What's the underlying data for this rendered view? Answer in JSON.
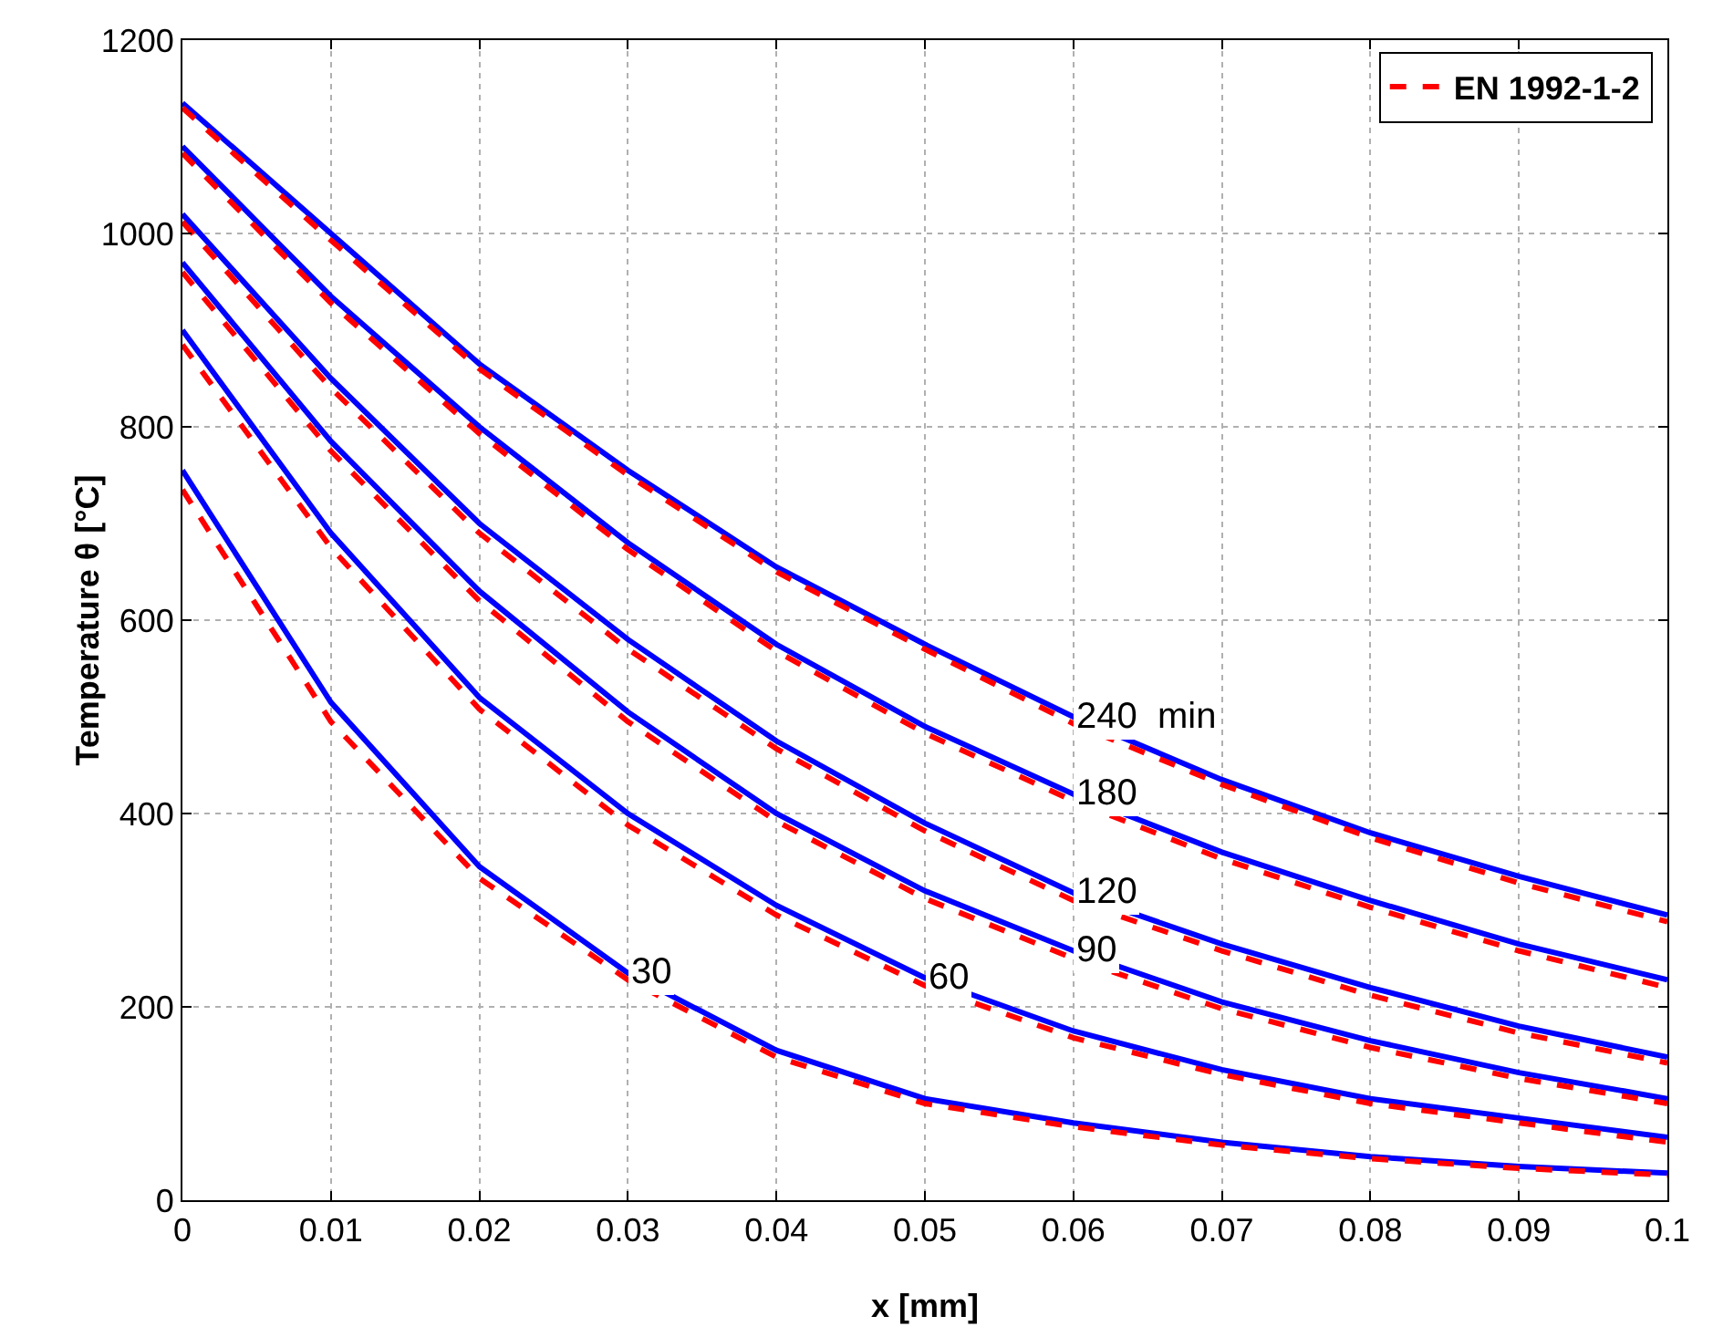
{
  "chart_data": {
    "type": "line",
    "xlabel": "x [mm]",
    "ylabel": "Temperature θ [°C]",
    "x": [
      0,
      0.01,
      0.02,
      0.03,
      0.04,
      0.05,
      0.06,
      0.07,
      0.08,
      0.09,
      0.1
    ],
    "series": [
      {
        "color": "#0000ff",
        "line_style": "solid",
        "values": [
          1135,
          1000,
          865,
          755,
          655,
          575,
          500,
          435,
          380,
          335,
          295
        ]
      },
      {
        "name": "EN 1992-1-2",
        "color": "#ff0000",
        "line_style": "dashed",
        "values": [
          1130,
          993,
          860,
          750,
          650,
          570,
          493,
          430,
          375,
          328,
          288
        ]
      },
      {
        "color": "#0000ff",
        "line_style": "solid",
        "values": [
          1090,
          935,
          800,
          680,
          575,
          490,
          420,
          360,
          310,
          265,
          228
        ]
      },
      {
        "color": "#ff0000",
        "line_style": "dashed",
        "values": [
          1083,
          928,
          793,
          673,
          568,
          483,
          413,
          353,
          303,
          258,
          220
        ]
      },
      {
        "color": "#0000ff",
        "line_style": "solid",
        "values": [
          1020,
          850,
          700,
          580,
          475,
          390,
          318,
          265,
          220,
          180,
          148
        ]
      },
      {
        "color": "#ff0000",
        "line_style": "dashed",
        "values": [
          1012,
          840,
          690,
          570,
          467,
          382,
          310,
          258,
          212,
          173,
          142
        ]
      },
      {
        "color": "#0000ff",
        "line_style": "solid",
        "values": [
          970,
          785,
          630,
          505,
          400,
          320,
          258,
          205,
          165,
          132,
          105
        ]
      },
      {
        "color": "#ff0000",
        "line_style": "dashed",
        "values": [
          960,
          775,
          620,
          495,
          392,
          312,
          250,
          198,
          158,
          126,
          100
        ]
      },
      {
        "color": "#0000ff",
        "line_style": "solid",
        "values": [
          900,
          690,
          520,
          400,
          305,
          230,
          175,
          135,
          105,
          85,
          65
        ]
      },
      {
        "color": "#ff0000",
        "line_style": "dashed",
        "values": [
          885,
          675,
          508,
          388,
          295,
          222,
          168,
          130,
          100,
          80,
          60
        ]
      },
      {
        "color": "#0000ff",
        "line_style": "solid",
        "values": [
          755,
          515,
          345,
          235,
          155,
          105,
          80,
          60,
          45,
          35,
          28
        ]
      },
      {
        "color": "#ff0000",
        "line_style": "dashed",
        "values": [
          735,
          495,
          333,
          228,
          148,
          100,
          76,
          57,
          43,
          33,
          26
        ]
      }
    ],
    "annotations": [
      {
        "text": "240  min",
        "x": 0.06,
        "y": 500
      },
      {
        "text": "180",
        "x": 0.06,
        "y": 420
      },
      {
        "text": "120",
        "x": 0.06,
        "y": 318
      },
      {
        "text": "90",
        "x": 0.06,
        "y": 258
      },
      {
        "text": "60",
        "x": 0.05,
        "y": 230
      },
      {
        "text": "30",
        "x": 0.03,
        "y": 235
      }
    ],
    "xlim": [
      0,
      0.1
    ],
    "xticks": [
      0,
      0.01,
      0.02,
      0.03,
      0.04,
      0.05,
      0.06,
      0.07,
      0.08,
      0.09,
      {
        "value": 0.1,
        "label": "0.1"
      }
    ],
    "ylim": [
      0,
      1200
    ],
    "yticks": [
      0,
      200,
      400,
      600,
      800,
      1000,
      1200
    ],
    "grid": true,
    "legend": "top right",
    "marker": "none"
  }
}
